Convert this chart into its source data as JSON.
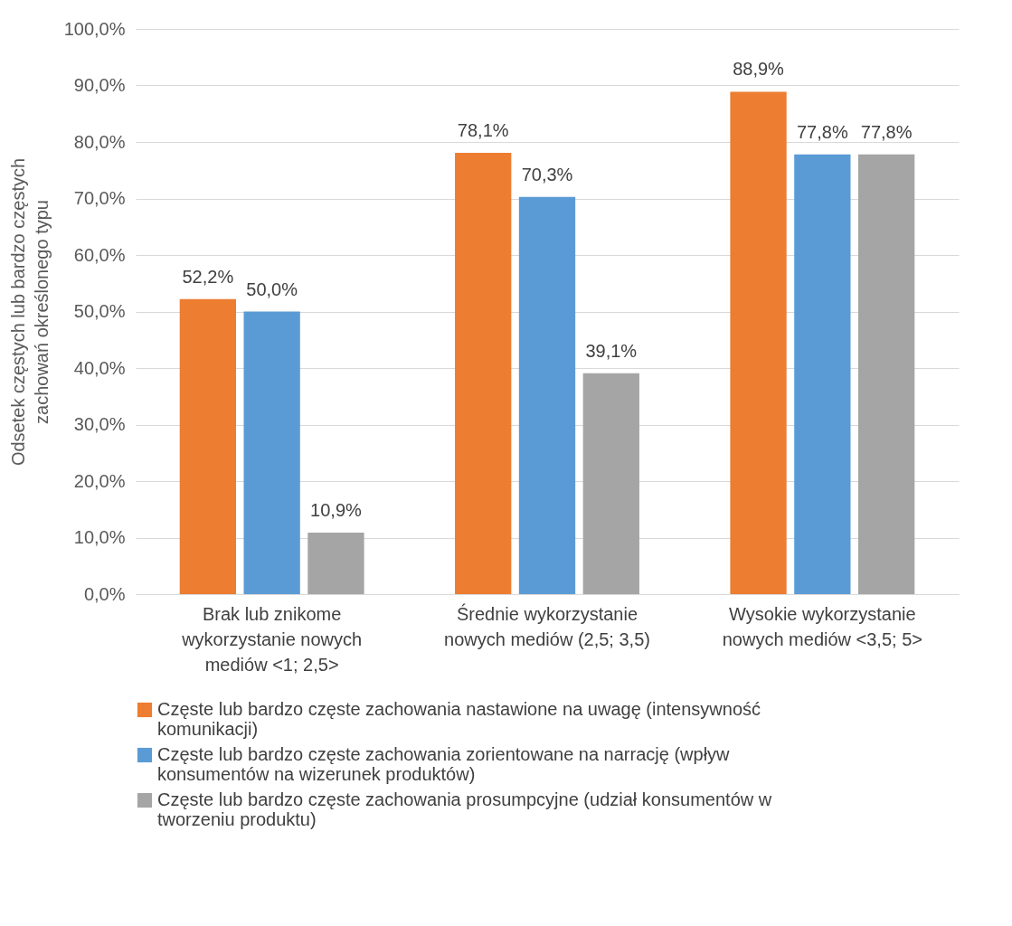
{
  "chart_data": {
    "type": "bar",
    "ylabel": "Odsetek  częstych lub bardzo częstych zachowań określonego typu",
    "categories": [
      "Brak lub znikome wykorzystanie nowych mediów <1; 2,5>",
      "Średnie wykorzystanie nowych mediów (2,5; 3,5)",
      "Wysokie wykorzystanie nowych mediów <3,5; 5>"
    ],
    "series": [
      {
        "name": "Częste lub bardzo częste zachowania nastawione na uwagę (intensywność komunikacji)",
        "color": "#ed7d31",
        "values": [
          52.2,
          78.1,
          88.9
        ],
        "value_labels": [
          "52,2%",
          "78,1%",
          "88,9%"
        ]
      },
      {
        "name": "Częste lub bardzo częste zachowania zorientowane na narrację (wpływ konsumentów na wizerunek produktów)",
        "color": "#5b9bd5",
        "values": [
          50.0,
          70.3,
          77.8
        ],
        "value_labels": [
          "50,0%",
          "70,3%",
          "77,8%"
        ]
      },
      {
        "name": "Częste lub bardzo częste zachowania prosumpcyjne (udział konsumentów w tworzeniu produktu)",
        "color": "#a5a5a5",
        "values": [
          10.9,
          39.1,
          77.8
        ],
        "value_labels": [
          "10,9%",
          "39,1%",
          "77,8%"
        ]
      }
    ],
    "ylim": [
      0,
      100
    ],
    "yticks": [
      {
        "value": 0,
        "label": "0,0%"
      },
      {
        "value": 10,
        "label": "10,0%"
      },
      {
        "value": 20,
        "label": "20,0%"
      },
      {
        "value": 30,
        "label": "30,0%"
      },
      {
        "value": 40,
        "label": "40,0%"
      },
      {
        "value": 50,
        "label": "50,0%"
      },
      {
        "value": 60,
        "label": "60,0%"
      },
      {
        "value": 70,
        "label": "70,0%"
      },
      {
        "value": 80,
        "label": "80,0%"
      },
      {
        "value": 90,
        "label": "90,0%"
      },
      {
        "value": 100,
        "label": "100,0%"
      }
    ],
    "grid": "y",
    "legend": "bottom"
  }
}
